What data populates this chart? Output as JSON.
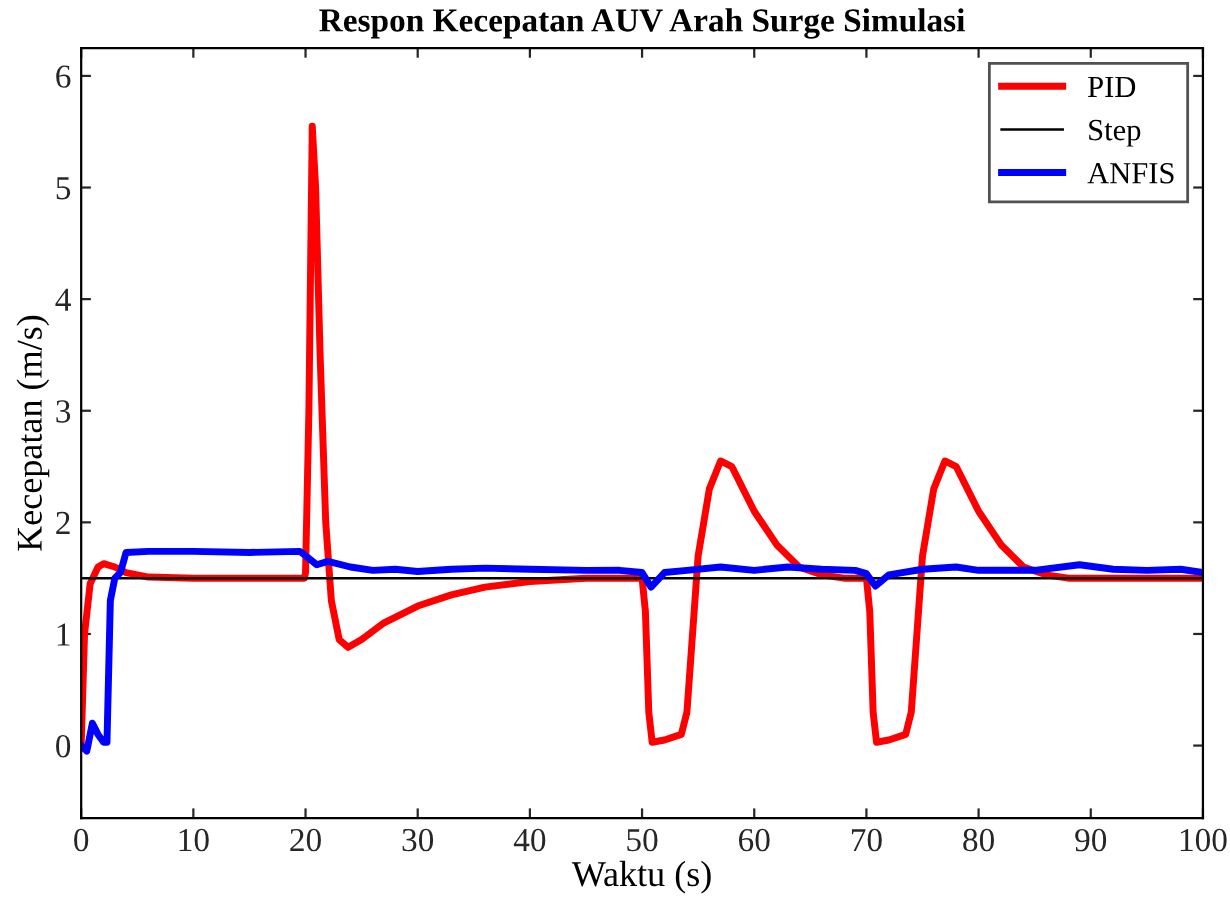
{
  "chart_data": {
    "type": "line",
    "title": "Respon Kecepatan AUV Arah Surge Simulasi",
    "xlabel": "Waktu (s)",
    "ylabel": "Kecepatan (m/s)",
    "xlim": [
      0,
      100
    ],
    "xticks": [
      0,
      10,
      20,
      30,
      40,
      50,
      60,
      70,
      80,
      90,
      100
    ],
    "ylim": [
      -0.65,
      6.25
    ],
    "yticks": [
      0,
      1,
      2,
      3,
      4,
      5,
      6
    ],
    "grid": false,
    "legend": "top right",
    "series": [
      {
        "name": "PID",
        "color": "#ff0000",
        "x": [
          0,
          0.3,
          0.8,
          1.5,
          2,
          3,
          4,
          6,
          10,
          19.9,
          20,
          20.3,
          20.6,
          20.9,
          21.3,
          21.8,
          22.3,
          23,
          23.8,
          25,
          27,
          30,
          33,
          36,
          40,
          45,
          50,
          50.3,
          50.6,
          50.9,
          52,
          53.5,
          54,
          54.5,
          55,
          56,
          57,
          58,
          59,
          60,
          62,
          64,
          66,
          68,
          70,
          70.3,
          70.6,
          70.9,
          72,
          73.5,
          74,
          74.5,
          75,
          76,
          77,
          78,
          79,
          80,
          82,
          84,
          86,
          88,
          100
        ],
        "values": [
          0,
          1.0,
          1.45,
          1.6,
          1.63,
          1.6,
          1.55,
          1.51,
          1.5,
          1.5,
          1.55,
          3,
          5.55,
          5,
          3.5,
          2,
          1.3,
          0.95,
          0.88,
          0.95,
          1.1,
          1.25,
          1.35,
          1.42,
          1.47,
          1.5,
          1.5,
          1.2,
          0.3,
          0.03,
          0.05,
          0.1,
          0.3,
          1.0,
          1.7,
          2.3,
          2.55,
          2.5,
          2.3,
          2.1,
          1.8,
          1.6,
          1.53,
          1.5,
          1.5,
          1.2,
          0.3,
          0.03,
          0.05,
          0.1,
          0.3,
          1.0,
          1.7,
          2.3,
          2.55,
          2.5,
          2.3,
          2.1,
          1.8,
          1.6,
          1.53,
          1.5,
          1.5
        ]
      },
      {
        "name": "Step",
        "color": "#000000",
        "x": [
          0,
          100
        ],
        "values": [
          1.5,
          1.5
        ]
      },
      {
        "name": "ANFIS",
        "color": "#0000ff",
        "x": [
          0,
          0.5,
          1,
          1.5,
          2,
          2.3,
          2.6,
          3,
          3.5,
          4,
          6,
          10,
          15,
          19.5,
          20,
          21,
          22,
          24,
          26,
          28,
          30,
          33,
          36,
          40,
          45,
          48,
          50,
          50.8,
          52,
          54,
          57,
          60,
          63,
          66,
          69,
          70,
          70.8,
          72,
          75,
          78,
          80,
          85,
          89,
          92,
          95,
          98,
          100
        ],
        "values": [
          0,
          -0.05,
          0.2,
          0.1,
          0.03,
          0.03,
          1.3,
          1.5,
          1.55,
          1.73,
          1.74,
          1.74,
          1.73,
          1.74,
          1.7,
          1.62,
          1.65,
          1.6,
          1.57,
          1.58,
          1.56,
          1.58,
          1.59,
          1.58,
          1.57,
          1.57,
          1.55,
          1.42,
          1.55,
          1.57,
          1.6,
          1.57,
          1.6,
          1.58,
          1.57,
          1.54,
          1.43,
          1.53,
          1.58,
          1.6,
          1.57,
          1.57,
          1.62,
          1.58,
          1.57,
          1.58,
          1.55
        ]
      }
    ]
  }
}
